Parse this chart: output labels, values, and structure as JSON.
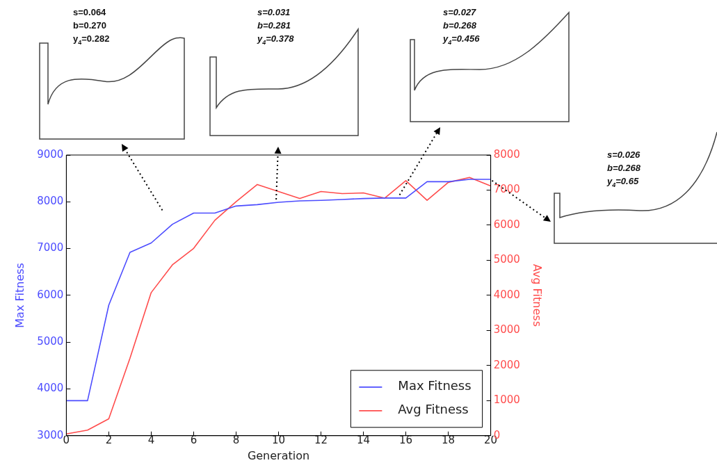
{
  "chart_data": {
    "type": "line",
    "xlabel": "Generation",
    "ylabel": "Max Fitness",
    "y2label": "Avg Fitness",
    "x": [
      0,
      1,
      2,
      3,
      4,
      5,
      6,
      7,
      8,
      9,
      10,
      11,
      12,
      13,
      14,
      15,
      16,
      17,
      18,
      19,
      20
    ],
    "series": [
      {
        "name": "Max Fitness",
        "color": "#4c4cff",
        "values": [
          3750,
          3750,
          5790,
          6920,
          7120,
          7520,
          7760,
          7760,
          7910,
          7940,
          7990,
          8020,
          8030,
          8050,
          8070,
          8080,
          8080,
          8430,
          8430,
          8480,
          8480
        ]
      },
      {
        "name": "Avg Fitness",
        "color": "#ff4c4c",
        "axis": "y2",
        "values": [
          50,
          160,
          480,
          2210,
          4080,
          4870,
          5340,
          6140,
          6670,
          7160,
          6960,
          6760,
          6960,
          6900,
          6920,
          6770,
          7270,
          6710,
          7220,
          7360,
          7120
        ]
      }
    ],
    "xlim": [
      0,
      20
    ],
    "xticks": [
      0,
      2,
      4,
      6,
      8,
      10,
      12,
      14,
      16,
      18,
      20
    ],
    "ylim": [
      3000,
      9000
    ],
    "yticks": [
      3000,
      4000,
      5000,
      6000,
      7000,
      8000,
      9000
    ],
    "y2lim": [
      0,
      8000
    ],
    "y2ticks": [
      0,
      1000,
      2000,
      3000,
      4000,
      5000,
      6000,
      7000,
      8000
    ],
    "legend": "bottom right",
    "annotations": [
      "s=0.064\nb=0.270\ny$_{4}$=0.282",
      "s=0.031\nb=0.281\ny$_{4}$=0.378",
      "s=0.027\nb=0.268\ny$_{4}$=0.456",
      "s=0.026\nb=0.268\ny$_{4}$=0.65"
    ]
  }
}
